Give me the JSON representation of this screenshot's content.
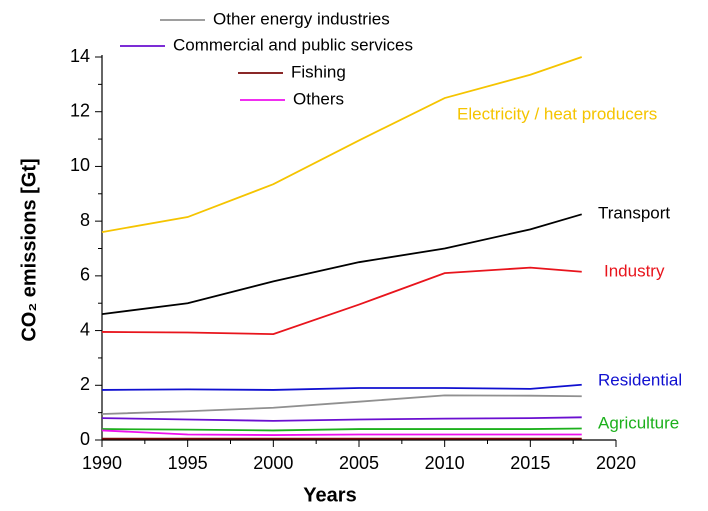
{
  "chart_data": {
    "type": "line",
    "xlabel": "Years",
    "ylabel": "CO₂ emissions [Gt]",
    "x": [
      1990,
      1995,
      2000,
      2005,
      2010,
      2015,
      2018
    ],
    "xlim": [
      1990,
      2020
    ],
    "xticks": [
      1990,
      1995,
      2000,
      2005,
      2010,
      2015,
      2020
    ],
    "ylim": [
      0,
      14
    ],
    "yticks": [
      0,
      2,
      4,
      6,
      8,
      10,
      12,
      14
    ],
    "grid": false,
    "series": [
      {
        "name": "Electricity / heat producers",
        "color": "#f5c400",
        "label": "inline",
        "values": [
          7.6,
          8.15,
          9.35,
          10.95,
          12.5,
          13.35,
          14.0
        ]
      },
      {
        "name": "Transport",
        "color": "#000000",
        "label": "inline",
        "values": [
          4.6,
          5.0,
          5.8,
          6.5,
          7.0,
          7.7,
          8.25
        ]
      },
      {
        "name": "Industry",
        "color": "#e8141c",
        "label": "inline",
        "values": [
          3.95,
          3.93,
          3.87,
          4.95,
          6.1,
          6.3,
          6.15
        ]
      },
      {
        "name": "Residential",
        "color": "#1010d0",
        "label": "inline",
        "values": [
          1.83,
          1.85,
          1.83,
          1.9,
          1.9,
          1.87,
          2.02
        ]
      },
      {
        "name": "Other energy industries",
        "color": "#909090",
        "label": "legend",
        "values": [
          0.95,
          1.05,
          1.18,
          1.4,
          1.63,
          1.62,
          1.6
        ]
      },
      {
        "name": "Commercial and public services",
        "color": "#6a0fd0",
        "label": "legend",
        "values": [
          0.8,
          0.75,
          0.7,
          0.75,
          0.78,
          0.8,
          0.83
        ]
      },
      {
        "name": "Agriculture",
        "color": "#1cb01c",
        "label": "inline",
        "values": [
          0.4,
          0.38,
          0.35,
          0.4,
          0.4,
          0.4,
          0.42
        ]
      },
      {
        "name": "Others",
        "color": "#ee10ee",
        "label": "legend",
        "values": [
          0.35,
          0.2,
          0.18,
          0.2,
          0.2,
          0.2,
          0.2
        ]
      },
      {
        "name": "Fishing",
        "color": "#7a0a0a",
        "label": "legend",
        "values": [
          0.05,
          0.05,
          0.05,
          0.05,
          0.05,
          0.05,
          0.05
        ]
      }
    ]
  }
}
